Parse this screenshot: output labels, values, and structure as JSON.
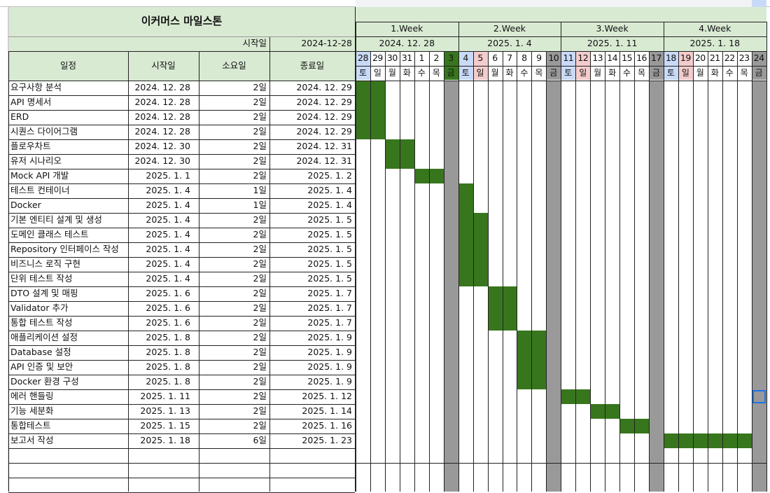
{
  "title": "이커머스 마일스톤",
  "start_label": "시작일",
  "start_value": "2024-12-28",
  "columns": {
    "task": "일정",
    "start": "시작일",
    "duration": "소요일",
    "end": "종료일"
  },
  "weeks": [
    {
      "label": "1.Week",
      "date": "2024. 12. 28"
    },
    {
      "label": "2.Week",
      "date": "2025. 1. 4"
    },
    {
      "label": "3.Week",
      "date": "2025. 1. 11"
    },
    {
      "label": "4.Week",
      "date": "2025. 1. 18"
    }
  ],
  "days": [
    {
      "num": "28",
      "dow": "토"
    },
    {
      "num": "29",
      "dow": "일"
    },
    {
      "num": "30",
      "dow": "월"
    },
    {
      "num": "31",
      "dow": "화"
    },
    {
      "num": "1",
      "dow": "수"
    },
    {
      "num": "2",
      "dow": "목"
    },
    {
      "num": "3",
      "dow": "금"
    },
    {
      "num": "4",
      "dow": "토"
    },
    {
      "num": "5",
      "dow": "일"
    },
    {
      "num": "6",
      "dow": "월"
    },
    {
      "num": "7",
      "dow": "화"
    },
    {
      "num": "8",
      "dow": "수"
    },
    {
      "num": "9",
      "dow": "목"
    },
    {
      "num": "10",
      "dow": "금"
    },
    {
      "num": "11",
      "dow": "토"
    },
    {
      "num": "12",
      "dow": "일"
    },
    {
      "num": "13",
      "dow": "월"
    },
    {
      "num": "14",
      "dow": "화"
    },
    {
      "num": "15",
      "dow": "수"
    },
    {
      "num": "16",
      "dow": "목"
    },
    {
      "num": "17",
      "dow": "금"
    },
    {
      "num": "18",
      "dow": "토"
    },
    {
      "num": "19",
      "dow": "일"
    },
    {
      "num": "20",
      "dow": "월"
    },
    {
      "num": "21",
      "dow": "화"
    },
    {
      "num": "22",
      "dow": "수"
    },
    {
      "num": "23",
      "dow": "목"
    },
    {
      "num": "24",
      "dow": "금"
    }
  ],
  "tasks": [
    {
      "name": "요구사항 분석",
      "start": "2024. 12. 28",
      "duration": "2일",
      "end": "2024. 12. 29",
      "bar_start": 0,
      "bar_len": 2
    },
    {
      "name": "API 명세서",
      "start": "2024. 12. 28",
      "duration": "2일",
      "end": "2024. 12. 29",
      "bar_start": 0,
      "bar_len": 2
    },
    {
      "name": "ERD",
      "start": "2024. 12. 28",
      "duration": "2일",
      "end": "2024. 12. 29",
      "bar_start": 0,
      "bar_len": 2
    },
    {
      "name": "시퀀스 다이어그램",
      "start": "2024. 12. 28",
      "duration": "2일",
      "end": "2024. 12. 29",
      "bar_start": 0,
      "bar_len": 2
    },
    {
      "name": "플로우차트",
      "start": "2024. 12. 30",
      "duration": "2일",
      "end": "2024. 12. 31",
      "bar_start": 2,
      "bar_len": 2
    },
    {
      "name": "유저 시나리오",
      "start": "2024. 12. 30",
      "duration": "2일",
      "end": "2024. 12. 31",
      "bar_start": 2,
      "bar_len": 2
    },
    {
      "name": "Mock API 개발",
      "start": "2025. 1. 1",
      "duration": "2일",
      "end": "2025. 1. 2",
      "bar_start": 4,
      "bar_len": 2
    },
    {
      "name": "테스트 컨테이너",
      "start": "2025. 1. 4",
      "duration": "1일",
      "end": "2025. 1. 4",
      "bar_start": 7,
      "bar_len": 1
    },
    {
      "name": "Docker",
      "start": "2025. 1. 4",
      "duration": "1일",
      "end": "2025. 1. 4",
      "bar_start": 7,
      "bar_len": 1
    },
    {
      "name": "기본 엔티티 설계 및 생성",
      "start": "2025. 1. 4",
      "duration": "2일",
      "end": "2025. 1. 5",
      "bar_start": 7,
      "bar_len": 2
    },
    {
      "name": "도메인 클래스 테스트",
      "start": "2025. 1. 4",
      "duration": "2일",
      "end": "2025. 1. 5",
      "bar_start": 7,
      "bar_len": 2
    },
    {
      "name": "Repository 인터페이스 작성",
      "start": "2025. 1. 4",
      "duration": "2일",
      "end": "2025. 1. 5",
      "bar_start": 7,
      "bar_len": 2
    },
    {
      "name": "비즈니스 로직 구현",
      "start": "2025. 1. 4",
      "duration": "2일",
      "end": "2025. 1. 5",
      "bar_start": 7,
      "bar_len": 2
    },
    {
      "name": "단위 테스트 작성",
      "start": "2025. 1. 4",
      "duration": "2일",
      "end": "2025. 1. 5",
      "bar_start": 7,
      "bar_len": 2
    },
    {
      "name": "DTO 설계 및 매핑",
      "start": "2025. 1. 6",
      "duration": "2일",
      "end": "2025. 1. 7",
      "bar_start": 9,
      "bar_len": 2
    },
    {
      "name": "Validator 추가",
      "start": "2025. 1. 6",
      "duration": "2일",
      "end": "2025. 1. 7",
      "bar_start": 9,
      "bar_len": 2
    },
    {
      "name": "통합 테스트 작성",
      "start": "2025. 1. 6",
      "duration": "2일",
      "end": "2025. 1. 7",
      "bar_start": 9,
      "bar_len": 2
    },
    {
      "name": "애플리케이션 설정",
      "start": "2025. 1. 8",
      "duration": "2일",
      "end": "2025. 1. 9",
      "bar_start": 11,
      "bar_len": 2
    },
    {
      "name": "Database 설정",
      "start": "2025. 1. 8",
      "duration": "2일",
      "end": "2025. 1. 9",
      "bar_start": 11,
      "bar_len": 2
    },
    {
      "name": "API 인증 및 보안",
      "start": "2025. 1. 8",
      "duration": "2일",
      "end": "2025. 1. 9",
      "bar_start": 11,
      "bar_len": 2
    },
    {
      "name": "Docker 환경 구성",
      "start": "2025. 1. 8",
      "duration": "2일",
      "end": "2025. 1. 9",
      "bar_start": 11,
      "bar_len": 2
    },
    {
      "name": "에러 핸들링",
      "start": "2025. 1. 11",
      "duration": "2일",
      "end": "2025. 1. 12",
      "bar_start": 14,
      "bar_len": 2
    },
    {
      "name": "기능 세분화",
      "start": "2025. 1. 13",
      "duration": "2일",
      "end": "2025. 1. 14",
      "bar_start": 16,
      "bar_len": 2
    },
    {
      "name": "통합테스트",
      "start": "2025. 1. 15",
      "duration": "2일",
      "end": "2025. 1. 16",
      "bar_start": 18,
      "bar_len": 2
    },
    {
      "name": "보고서 작성",
      "start": "2025. 1. 18",
      "duration": "6일",
      "end": "2025. 1. 23",
      "bar_start": 21,
      "bar_len": 6
    }
  ],
  "colors": {
    "header_green": "#d9ead3",
    "bar_green": "#38761d",
    "friday_gray": "#999999",
    "sat_blue": "#c9daf8",
    "sun_red": "#f4cccc",
    "friday_green": "#38761d",
    "selection_blue": "#1a73e8"
  }
}
